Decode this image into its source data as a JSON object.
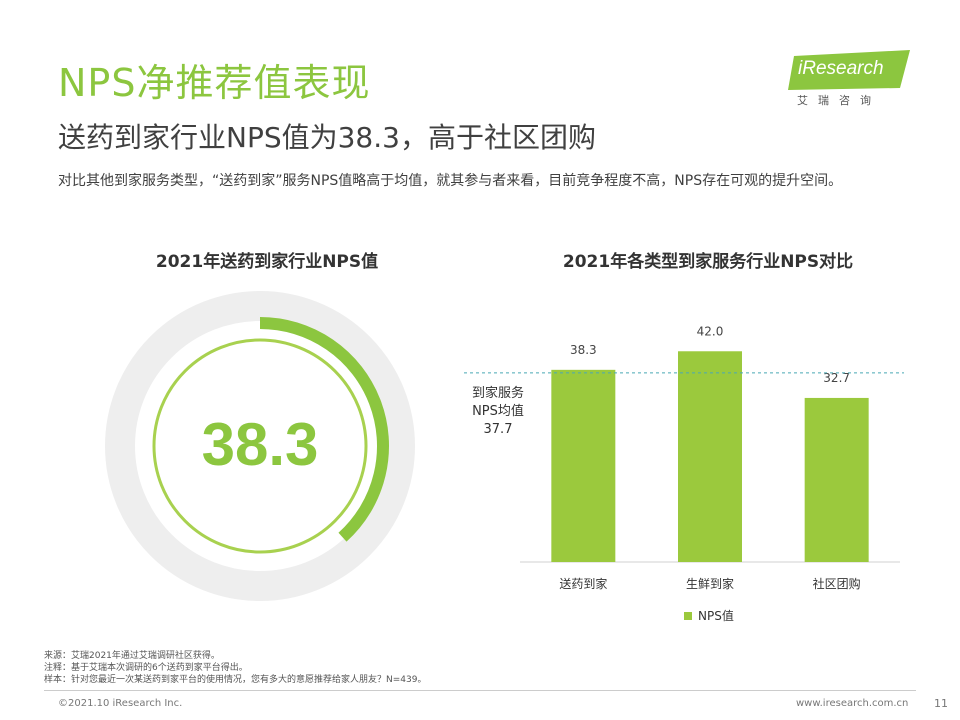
{
  "header": {
    "title": "NPS净推荐值表现",
    "subtitle": "送药到家行业NPS值为38.3，高于社区团购",
    "description": "对比其他到家服务类型，“送药到家”服务NPS值略高于均值，就其参与者来看，目前竞争程度不高，NPS存在可观的提升空间。"
  },
  "logo": {
    "text": "iResearch",
    "sub": "艾瑞咨询",
    "color": "#8cc63f"
  },
  "left_panel": {
    "title": "2021年送药到家行业NPS值",
    "value_label": "38.3",
    "accent": "#8cc63f"
  },
  "chart_data": [
    {
      "type": "gauge",
      "title": "2021年送药到家行业NPS值",
      "value": 38.3,
      "fill_fraction": 0.383
    },
    {
      "type": "bar",
      "title": "2021年各类型到家服务行业NPS对比",
      "categories": [
        "送药到家",
        "生鲜到家",
        "社区团购"
      ],
      "series": [
        {
          "name": "NPS值",
          "values": [
            38.3,
            42.0,
            32.7
          ],
          "labels": [
            "38.3",
            "42.0",
            "32.7"
          ],
          "color": "#9bc93d"
        }
      ],
      "ylim": [
        0,
        45
      ],
      "reference_line": {
        "label_lines": [
          "到家服务",
          "NPS均值",
          "37.7"
        ],
        "value": 37.7,
        "color": "#49a9b5"
      },
      "legend": "bottom"
    }
  ],
  "right_panel": {
    "title": "2021年各类型到家服务行业NPS对比"
  },
  "footnotes": [
    "来源：艾瑞2021年通过艾瑞调研社区获得。",
    "注释：基于艾瑞本次调研的6个送药到家平台得出。",
    "样本：针对您最近一次某送药到家平台的使用情况，您有多大的意愿推荐给家人朋友？N=439。"
  ],
  "footer": {
    "copyright": "©2021.10 iResearch Inc.",
    "website": "www.iresearch.com.cn",
    "page": "11"
  }
}
